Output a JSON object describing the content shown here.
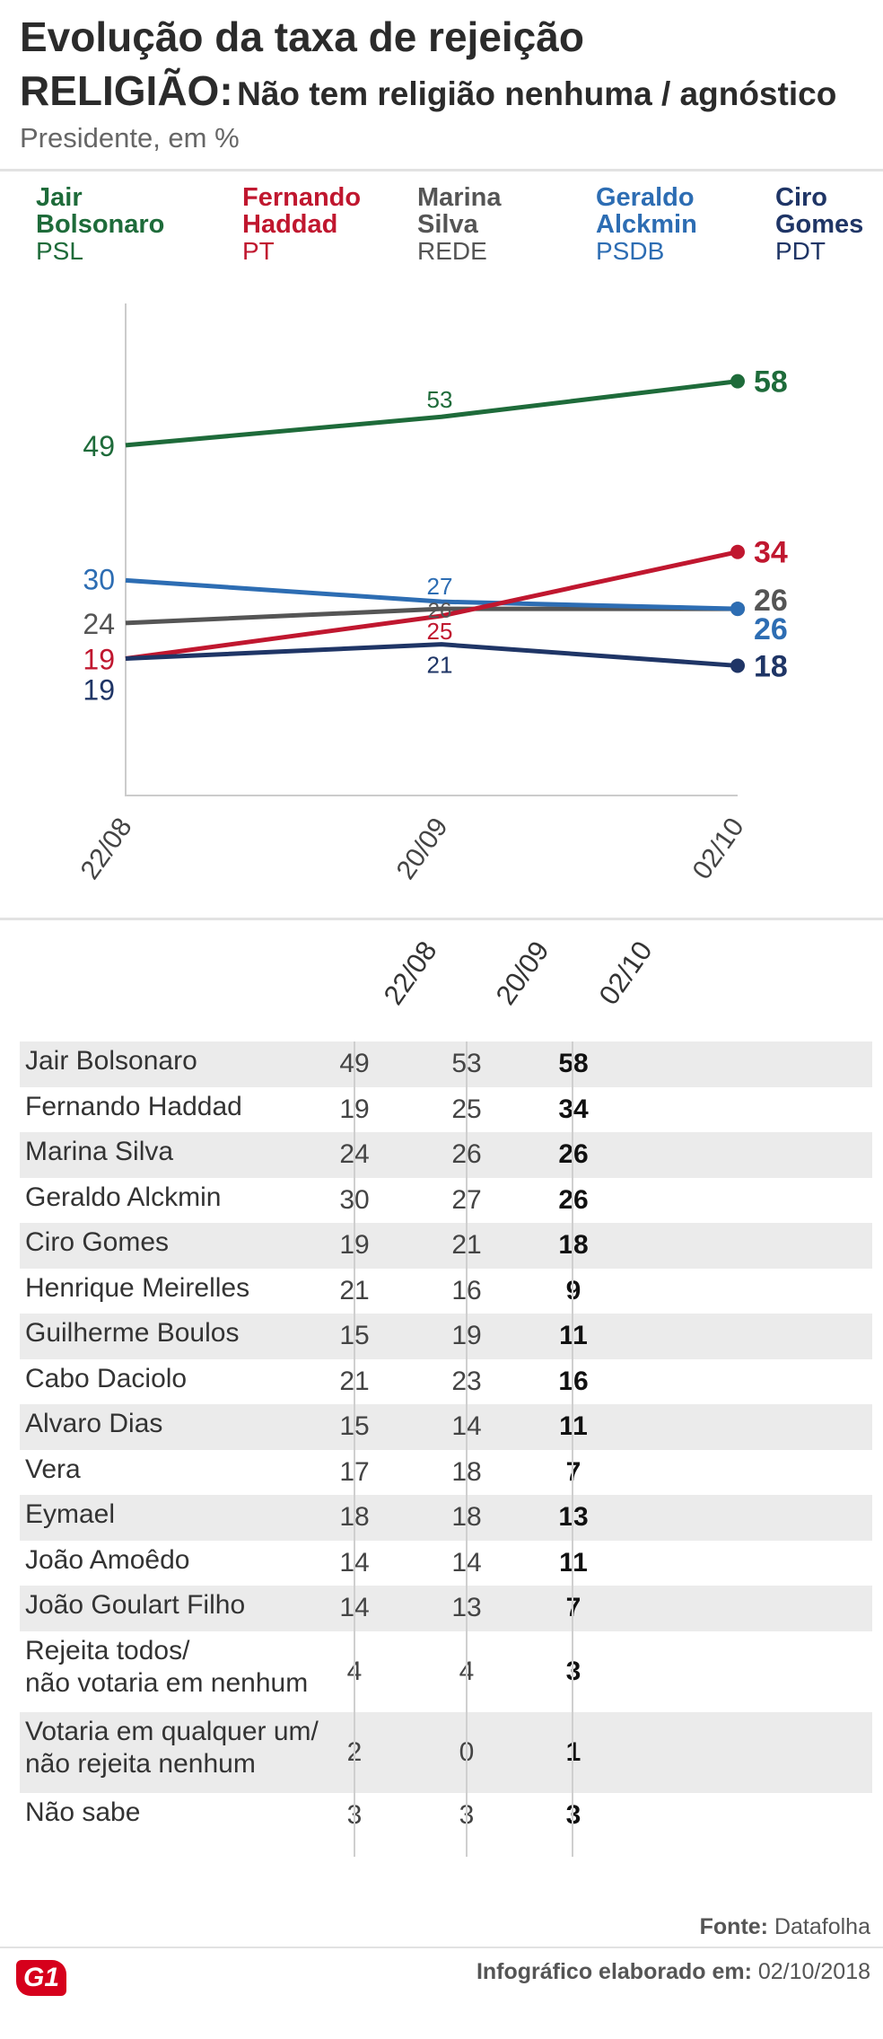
{
  "title": {
    "line1": "Evolução da taxa de rejeição",
    "line2_bold": "RELIGIÃO:",
    "line2_rest": "Não tem religião nenhuma / agnóstico",
    "subtitle": "Presidente, em %"
  },
  "legend": [
    {
      "name": "Jair\nBolsonaro",
      "party": "PSL",
      "color": "#1e6b3a"
    },
    {
      "name": "Fernando\nHaddad",
      "party": "PT",
      "color": "#c0172f"
    },
    {
      "name": "Marina\nSilva",
      "party": "REDE",
      "color": "#555555"
    },
    {
      "name": "Geraldo\nAlckmin",
      "party": "PSDB",
      "color": "#2d6db3"
    },
    {
      "name": "Ciro\nGomes",
      "party": "PDT",
      "color": "#1f3566"
    }
  ],
  "chart_data": {
    "type": "line",
    "x": [
      "22/08",
      "20/09",
      "02/10"
    ],
    "series": [
      {
        "name": "Jair Bolsonaro",
        "values": [
          49,
          53,
          58
        ],
        "color": "#1e6b3a"
      },
      {
        "name": "Fernando Haddad",
        "values": [
          19,
          25,
          34
        ],
        "color": "#c0172f"
      },
      {
        "name": "Marina Silva",
        "values": [
          24,
          26,
          26
        ],
        "color": "#555555"
      },
      {
        "name": "Geraldo Alckmin",
        "values": [
          30,
          27,
          26
        ],
        "color": "#2d6db3"
      },
      {
        "name": "Ciro Gomes",
        "values": [
          19,
          21,
          18
        ],
        "color": "#1f3566"
      }
    ],
    "ylim": [
      0,
      60
    ],
    "grid": false
  },
  "table": {
    "headers": [
      "22/08",
      "20/09",
      "02/10"
    ],
    "rows": [
      {
        "name": "Jair Bolsonaro",
        "v": [
          "49",
          "53",
          "58"
        ]
      },
      {
        "name": "Fernando Haddad",
        "v": [
          "19",
          "25",
          "34"
        ]
      },
      {
        "name": "Marina Silva",
        "v": [
          "24",
          "26",
          "26"
        ]
      },
      {
        "name": "Geraldo Alckmin",
        "v": [
          "30",
          "27",
          "26"
        ]
      },
      {
        "name": "Ciro Gomes",
        "v": [
          "19",
          "21",
          "18"
        ]
      },
      {
        "name": "Henrique Meirelles",
        "v": [
          "21",
          "16",
          "9"
        ]
      },
      {
        "name": "Guilherme Boulos",
        "v": [
          "15",
          "19",
          "11"
        ]
      },
      {
        "name": "Cabo Daciolo",
        "v": [
          "21",
          "23",
          "16"
        ]
      },
      {
        "name": "Alvaro Dias",
        "v": [
          "15",
          "14",
          "11"
        ]
      },
      {
        "name": "Vera",
        "v": [
          "17",
          "18",
          "7"
        ]
      },
      {
        "name": "Eymael",
        "v": [
          "18",
          "18",
          "13"
        ]
      },
      {
        "name": "João Amoêdo",
        "v": [
          "14",
          "14",
          "11"
        ]
      },
      {
        "name": "João Goulart Filho",
        "v": [
          "14",
          "13",
          "7"
        ]
      },
      {
        "name": "Rejeita todos/\nnão votaria em nenhum",
        "v": [
          "4",
          "4",
          "3"
        ]
      },
      {
        "name": "Votaria em qualquer um/\nnão rejeita nenhum",
        "v": [
          "2",
          "0",
          "1"
        ]
      },
      {
        "name": "Não sabe",
        "v": [
          "3",
          "3",
          "3"
        ]
      }
    ]
  },
  "footer": {
    "source_label": "Fonte:",
    "source": "Datafolha",
    "credit_label": "Infográfico elaborado em:",
    "credit_date": "02/10/2018",
    "logo": "G1"
  }
}
